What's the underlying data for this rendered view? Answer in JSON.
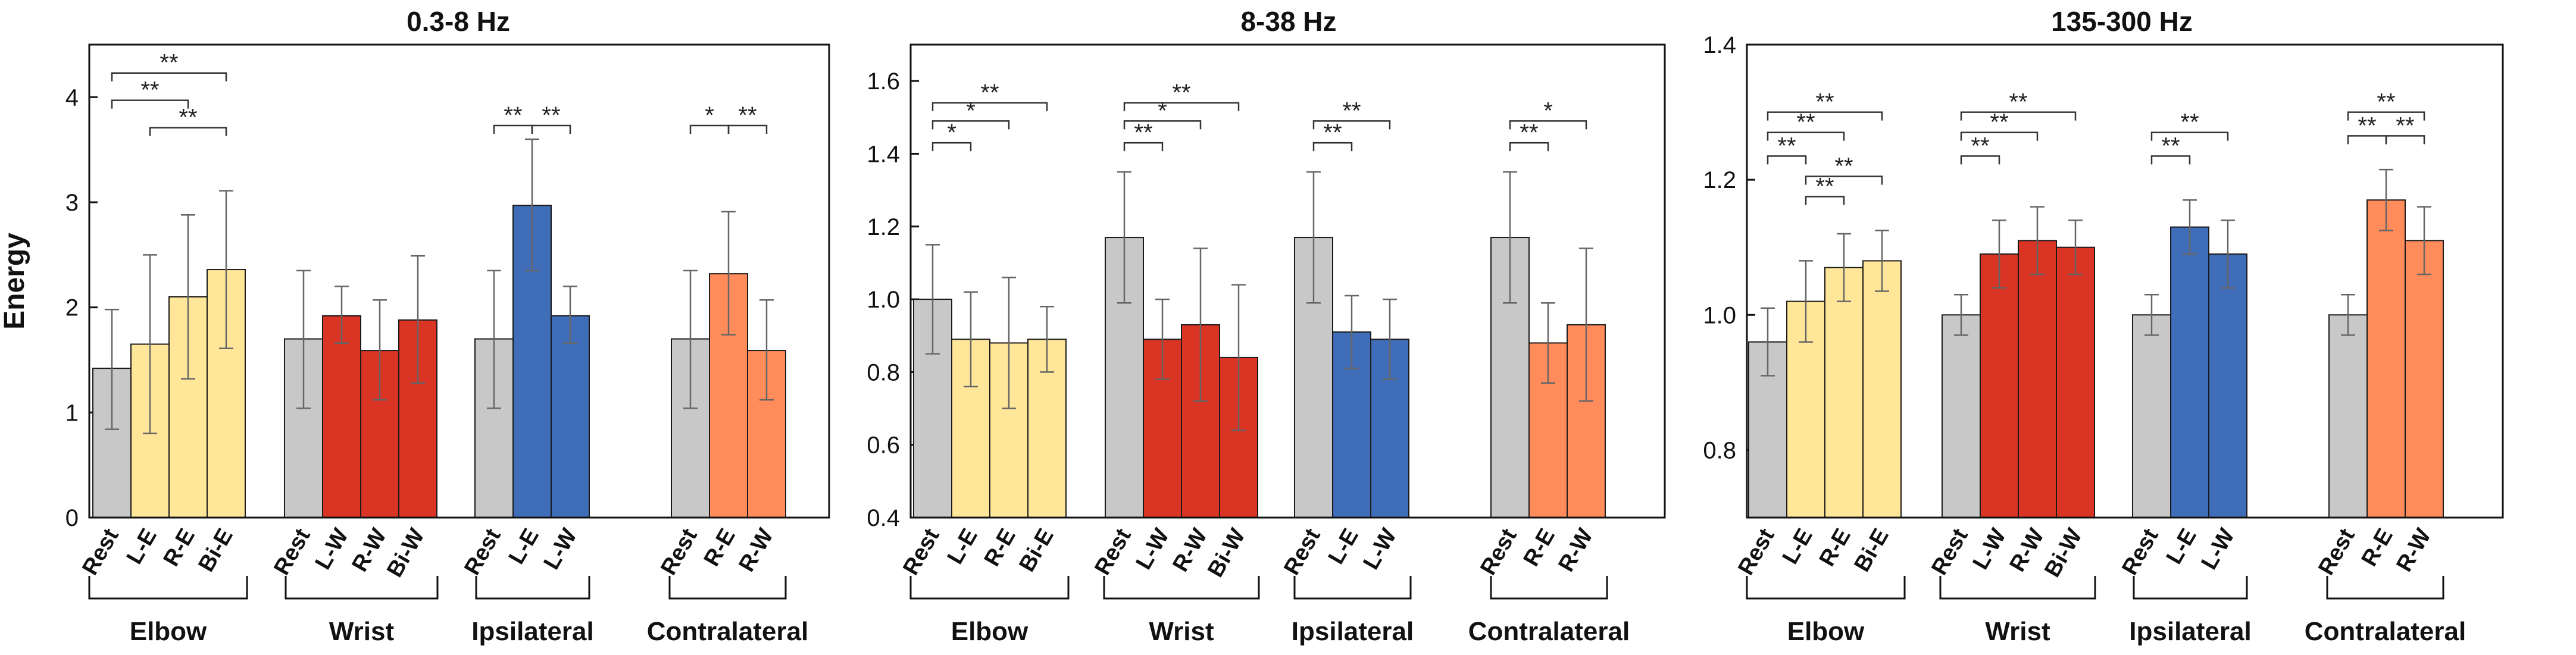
{
  "colors": {
    "rest": "#c8c8c8",
    "elbow": "#ffe699",
    "wrist": "#d93424",
    "ipsilateral": "#3f6db8",
    "contralateral": "#ff8c5a"
  },
  "chart_data": [
    {
      "type": "bar",
      "title": "0.3-8 Hz",
      "ylabel": "Energy",
      "ylim": [
        0,
        4.5
      ],
      "yticks": [
        0,
        1,
        2,
        3,
        4
      ],
      "ytick_labels": [
        "0",
        "1",
        "2",
        "3",
        "4"
      ],
      "groups": [
        {
          "label": "Elbow",
          "bars": [
            {
              "label": "Rest",
              "value": 1.42,
              "err_low": 0.58,
              "err_high": 0.56,
              "color": "rest"
            },
            {
              "label": "L-E",
              "value": 1.65,
              "err_low": 0.85,
              "err_high": 0.85,
              "color": "elbow"
            },
            {
              "label": "R-E",
              "value": 2.1,
              "err_low": 0.78,
              "err_high": 0.78,
              "color": "elbow"
            },
            {
              "label": "Bi-E",
              "value": 2.36,
              "err_low": 0.75,
              "err_high": 0.75,
              "color": "elbow"
            }
          ]
        },
        {
          "label": "Wrist",
          "bars": [
            {
              "label": "Rest",
              "value": 1.7,
              "err_low": 0.66,
              "err_high": 0.65,
              "color": "rest"
            },
            {
              "label": "L-W",
              "value": 1.92,
              "err_low": 0.26,
              "err_high": 0.28,
              "color": "wrist"
            },
            {
              "label": "R-W",
              "value": 1.59,
              "err_low": 0.47,
              "err_high": 0.48,
              "color": "wrist"
            },
            {
              "label": "Bi-W",
              "value": 1.88,
              "err_low": 0.6,
              "err_high": 0.61,
              "color": "wrist"
            }
          ]
        },
        {
          "label": "Ipsilateral",
          "bars": [
            {
              "label": "Rest",
              "value": 1.7,
              "err_low": 0.66,
              "err_high": 0.65,
              "color": "rest"
            },
            {
              "label": "L-E",
              "value": 2.97,
              "err_low": 0.62,
              "err_high": 0.63,
              "color": "ipsilateral"
            },
            {
              "label": "L-W",
              "value": 1.92,
              "err_low": 0.26,
              "err_high": 0.28,
              "color": "ipsilateral"
            }
          ]
        },
        {
          "label": "Contralateral",
          "bars": [
            {
              "label": "Rest",
              "value": 1.7,
              "err_low": 0.66,
              "err_high": 0.65,
              "color": "rest"
            },
            {
              "label": "R-E",
              "value": 2.32,
              "err_low": 0.58,
              "err_high": 0.59,
              "color": "contralateral"
            },
            {
              "label": "R-W",
              "value": 1.59,
              "err_low": 0.47,
              "err_high": 0.48,
              "color": "contralateral"
            }
          ]
        }
      ],
      "significance": [
        {
          "group": 0,
          "from": 0,
          "to": 3,
          "y": 4.23,
          "label": "**"
        },
        {
          "group": 0,
          "from": 0,
          "to": 2,
          "y": 3.97,
          "label": "**"
        },
        {
          "group": 0,
          "from": 1,
          "to": 3,
          "y": 3.71,
          "label": "**"
        },
        {
          "group": 2,
          "from": 0,
          "to": 1,
          "y": 3.73,
          "label": "**"
        },
        {
          "group": 2,
          "from": 1,
          "to": 2,
          "y": 3.73,
          "label": "**"
        },
        {
          "group": 3,
          "from": 0,
          "to": 1,
          "y": 3.73,
          "label": "*"
        },
        {
          "group": 3,
          "from": 1,
          "to": 2,
          "y": 3.73,
          "label": "**"
        }
      ]
    },
    {
      "type": "bar",
      "title": "8-38 Hz",
      "ylabel": "",
      "ylim": [
        0.4,
        1.7
      ],
      "yticks": [
        0.4,
        0.6,
        0.8,
        1.0,
        1.2,
        1.4,
        1.6
      ],
      "ytick_labels": [
        "0.4",
        "0.6",
        "0.8",
        "1.0",
        "1.2",
        "1.4",
        "1.6"
      ],
      "groups": [
        {
          "label": "Elbow",
          "bars": [
            {
              "label": "Rest",
              "value": 1.0,
              "err_low": 0.15,
              "err_high": 0.15,
              "color": "rest"
            },
            {
              "label": "L-E",
              "value": 0.89,
              "err_low": 0.13,
              "err_high": 0.13,
              "color": "elbow"
            },
            {
              "label": "R-E",
              "value": 0.88,
              "err_low": 0.18,
              "err_high": 0.18,
              "color": "elbow"
            },
            {
              "label": "Bi-E",
              "value": 0.89,
              "err_low": 0.09,
              "err_high": 0.09,
              "color": "elbow"
            }
          ]
        },
        {
          "label": "Wrist",
          "bars": [
            {
              "label": "Rest",
              "value": 1.17,
              "err_low": 0.18,
              "err_high": 0.18,
              "color": "rest"
            },
            {
              "label": "L-W",
              "value": 0.89,
              "err_low": 0.11,
              "err_high": 0.11,
              "color": "wrist"
            },
            {
              "label": "R-W",
              "value": 0.93,
              "err_low": 0.21,
              "err_high": 0.21,
              "color": "wrist"
            },
            {
              "label": "Bi-W",
              "value": 0.84,
              "err_low": 0.2,
              "err_high": 0.2,
              "color": "wrist"
            }
          ]
        },
        {
          "label": "Ipsilateral",
          "bars": [
            {
              "label": "Rest",
              "value": 1.17,
              "err_low": 0.18,
              "err_high": 0.18,
              "color": "rest"
            },
            {
              "label": "L-E",
              "value": 0.91,
              "err_low": 0.1,
              "err_high": 0.1,
              "color": "ipsilateral"
            },
            {
              "label": "L-W",
              "value": 0.89,
              "err_low": 0.11,
              "err_high": 0.11,
              "color": "ipsilateral"
            }
          ]
        },
        {
          "label": "Contralateral",
          "bars": [
            {
              "label": "Rest",
              "value": 1.17,
              "err_low": 0.18,
              "err_high": 0.18,
              "color": "rest"
            },
            {
              "label": "R-E",
              "value": 0.88,
              "err_low": 0.11,
              "err_high": 0.11,
              "color": "contralateral"
            },
            {
              "label": "R-W",
              "value": 0.93,
              "err_low": 0.21,
              "err_high": 0.21,
              "color": "contralateral"
            }
          ]
        }
      ],
      "significance": [
        {
          "group": 0,
          "from": 0,
          "to": 3,
          "y": 1.54,
          "label": "**"
        },
        {
          "group": 0,
          "from": 0,
          "to": 2,
          "y": 1.49,
          "label": "*"
        },
        {
          "group": 0,
          "from": 0,
          "to": 1,
          "y": 1.43,
          "label": "*"
        },
        {
          "group": 1,
          "from": 0,
          "to": 3,
          "y": 1.54,
          "label": "**"
        },
        {
          "group": 1,
          "from": 0,
          "to": 2,
          "y": 1.49,
          "label": "*"
        },
        {
          "group": 1,
          "from": 0,
          "to": 1,
          "y": 1.43,
          "label": "**"
        },
        {
          "group": 2,
          "from": 0,
          "to": 2,
          "y": 1.49,
          "label": "**"
        },
        {
          "group": 2,
          "from": 0,
          "to": 1,
          "y": 1.43,
          "label": "**"
        },
        {
          "group": 3,
          "from": 0,
          "to": 2,
          "y": 1.49,
          "label": "*"
        },
        {
          "group": 3,
          "from": 0,
          "to": 1,
          "y": 1.43,
          "label": "**"
        }
      ]
    },
    {
      "type": "bar",
      "title": "135-300 Hz",
      "ylabel": "",
      "ylim": [
        0.7,
        1.4
      ],
      "yticks": [
        0.8,
        1.0,
        1.2,
        1.4
      ],
      "ytick_labels": [
        "0.8",
        "1.0",
        "1.2",
        "1.4"
      ],
      "groups": [
        {
          "label": "Elbow",
          "bars": [
            {
              "label": "Rest",
              "value": 0.96,
              "err_low": 0.05,
              "err_high": 0.05,
              "color": "rest"
            },
            {
              "label": "L-E",
              "value": 1.02,
              "err_low": 0.06,
              "err_high": 0.06,
              "color": "elbow"
            },
            {
              "label": "R-E",
              "value": 1.07,
              "err_low": 0.05,
              "err_high": 0.05,
              "color": "elbow"
            },
            {
              "label": "Bi-E",
              "value": 1.08,
              "err_low": 0.045,
              "err_high": 0.045,
              "color": "elbow"
            }
          ]
        },
        {
          "label": "Wrist",
          "bars": [
            {
              "label": "Rest",
              "value": 1.0,
              "err_low": 0.03,
              "err_high": 0.03,
              "color": "rest"
            },
            {
              "label": "L-W",
              "value": 1.09,
              "err_low": 0.05,
              "err_high": 0.05,
              "color": "wrist"
            },
            {
              "label": "R-W",
              "value": 1.11,
              "err_low": 0.05,
              "err_high": 0.05,
              "color": "wrist"
            },
            {
              "label": "Bi-W",
              "value": 1.1,
              "err_low": 0.04,
              "err_high": 0.04,
              "color": "wrist"
            }
          ]
        },
        {
          "label": "Ipsilateral",
          "bars": [
            {
              "label": "Rest",
              "value": 1.0,
              "err_low": 0.03,
              "err_high": 0.03,
              "color": "rest"
            },
            {
              "label": "L-E",
              "value": 1.13,
              "err_low": 0.04,
              "err_high": 0.04,
              "color": "ipsilateral"
            },
            {
              "label": "L-W",
              "value": 1.09,
              "err_low": 0.05,
              "err_high": 0.05,
              "color": "ipsilateral"
            }
          ]
        },
        {
          "label": "Contralateral",
          "bars": [
            {
              "label": "Rest",
              "value": 1.0,
              "err_low": 0.03,
              "err_high": 0.03,
              "color": "rest"
            },
            {
              "label": "R-E",
              "value": 1.17,
              "err_low": 0.045,
              "err_high": 0.045,
              "color": "contralateral"
            },
            {
              "label": "R-W",
              "value": 1.11,
              "err_low": 0.05,
              "err_high": 0.05,
              "color": "contralateral"
            }
          ]
        }
      ],
      "significance": [
        {
          "group": 0,
          "from": 0,
          "to": 3,
          "y": 1.3,
          "label": "**"
        },
        {
          "group": 0,
          "from": 0,
          "to": 2,
          "y": 1.27,
          "label": "**"
        },
        {
          "group": 0,
          "from": 0,
          "to": 1,
          "y": 1.235,
          "label": "**"
        },
        {
          "group": 0,
          "from": 1,
          "to": 3,
          "y": 1.205,
          "label": "**"
        },
        {
          "group": 0,
          "from": 1,
          "to": 2,
          "y": 1.175,
          "label": "**"
        },
        {
          "group": 1,
          "from": 0,
          "to": 3,
          "y": 1.3,
          "label": "**"
        },
        {
          "group": 1,
          "from": 0,
          "to": 2,
          "y": 1.27,
          "label": "**"
        },
        {
          "group": 1,
          "from": 0,
          "to": 1,
          "y": 1.235,
          "label": "**"
        },
        {
          "group": 2,
          "from": 0,
          "to": 2,
          "y": 1.27,
          "label": "**"
        },
        {
          "group": 2,
          "from": 0,
          "to": 1,
          "y": 1.235,
          "label": "**"
        },
        {
          "group": 3,
          "from": 0,
          "to": 2,
          "y": 1.3,
          "label": "**"
        },
        {
          "group": 3,
          "from": 0,
          "to": 1,
          "y": 1.265,
          "label": "**"
        },
        {
          "group": 3,
          "from": 1,
          "to": 2,
          "y": 1.265,
          "label": "**"
        }
      ]
    }
  ]
}
